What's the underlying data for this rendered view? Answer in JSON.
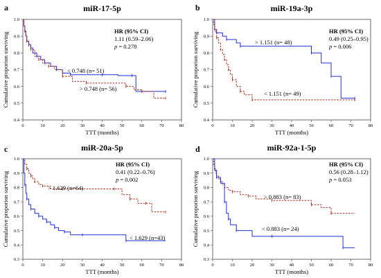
{
  "chart_data": [
    {
      "type": "line",
      "panel_letter": "a",
      "title": "miR-17-5p",
      "xlabel": "TTT (months)",
      "ylabel": "Cumulative proporion surviving",
      "xlim": [
        0,
        80
      ],
      "ylim": [
        0.4,
        1.0
      ],
      "xticks": [
        0,
        10,
        20,
        30,
        40,
        50,
        60,
        70,
        80
      ],
      "yticks": [
        0.4,
        0.5,
        0.6,
        0.7,
        0.8,
        0.9,
        1.0
      ],
      "annotation": {
        "hr_label": "HR (95% CI)",
        "hr_value": "1.11 (0.59–2.06)",
        "p_label": "p",
        "p_value": "= 0.278"
      },
      "series": [
        {
          "name": "< 0.748 (n= 51)",
          "color": "#1f2fd8",
          "dash": "solid",
          "x": [
            0,
            0.5,
            1,
            1.5,
            2,
            3,
            4,
            5,
            7,
            9,
            11,
            14,
            17,
            20,
            24,
            30,
            40,
            48,
            55,
            57,
            72
          ],
          "y": [
            1.0,
            0.96,
            0.93,
            0.9,
            0.87,
            0.85,
            0.83,
            0.8,
            0.78,
            0.76,
            0.74,
            0.72,
            0.7,
            0.68,
            0.67,
            0.67,
            0.67,
            0.665,
            0.665,
            0.57,
            0.57
          ]
        },
        {
          "name": "> 0.748 (n= 56)",
          "color": "#a52a1a",
          "dash": "dashed",
          "x": [
            0,
            0.5,
            1,
            1.5,
            2,
            3,
            4,
            6,
            8,
            10,
            13,
            16,
            20,
            25,
            32,
            45,
            52,
            56,
            60,
            66,
            72
          ],
          "y": [
            1.0,
            0.96,
            0.93,
            0.9,
            0.87,
            0.84,
            0.82,
            0.78,
            0.76,
            0.74,
            0.72,
            0.7,
            0.66,
            0.63,
            0.62,
            0.62,
            0.6,
            0.58,
            0.57,
            0.53,
            0.53
          ]
        }
      ]
    },
    {
      "type": "line",
      "panel_letter": "b",
      "title": "miR-19a-3p",
      "xlabel": "TTT (months)",
      "ylabel": "Cumulative proporion surviving",
      "xlim": [
        0,
        80
      ],
      "ylim": [
        0.4,
        1.0
      ],
      "xticks": [
        0,
        10,
        20,
        30,
        40,
        50,
        60,
        70,
        80
      ],
      "yticks": [
        0.4,
        0.5,
        0.6,
        0.7,
        0.8,
        0.9,
        1.0
      ],
      "annotation": {
        "hr_label": "HR (95% CI)",
        "hr_value": "0.49 (0.25–0.95)",
        "p_label": "p",
        "p_value": "= 0.006"
      },
      "series": [
        {
          "name": "> 1.151 (n= 48)",
          "color": "#1f2fd8",
          "dash": "solid",
          "x": [
            0,
            1,
            2,
            5,
            7,
            12,
            14,
            47,
            50,
            55,
            60,
            65,
            72
          ],
          "y": [
            1.0,
            0.94,
            0.92,
            0.9,
            0.88,
            0.86,
            0.84,
            0.84,
            0.8,
            0.74,
            0.66,
            0.53,
            0.53
          ]
        },
        {
          "name": "< 1.151 (n= 49)",
          "color": "#a52a1a",
          "dash": "dashed",
          "x": [
            0,
            0.5,
            1,
            1.5,
            2,
            3,
            4,
            5,
            6,
            7,
            8,
            9,
            10,
            12,
            14,
            16,
            20,
            30,
            72
          ],
          "y": [
            1.0,
            0.97,
            0.94,
            0.92,
            0.89,
            0.86,
            0.82,
            0.79,
            0.76,
            0.73,
            0.7,
            0.67,
            0.64,
            0.6,
            0.57,
            0.55,
            0.52,
            0.52,
            0.52
          ]
        }
      ]
    },
    {
      "type": "line",
      "panel_letter": "c",
      "title": "miR-20a-5p",
      "xlabel": "TTT (months)",
      "ylabel": "Cumulative proporion surviving",
      "xlim": [
        0,
        80
      ],
      "ylim": [
        0.3,
        1.0
      ],
      "xticks": [
        0,
        10,
        20,
        30,
        40,
        50,
        60,
        70,
        80
      ],
      "yticks": [
        0.3,
        0.4,
        0.5,
        0.6,
        0.7,
        0.8,
        0.9,
        1.0
      ],
      "annotation": {
        "hr_label": "HR (95% CI)",
        "hr_value": "0.41 (0.22–0.76)",
        "p_label": "p",
        "p_value": "= 0.002"
      },
      "series": [
        {
          "name": "> 1.629 (n=64)",
          "color": "#a52a1a",
          "dash": "dashed",
          "x": [
            0,
            1,
            2,
            3,
            4,
            5,
            6,
            8,
            10,
            14,
            20,
            30,
            46,
            50,
            54,
            58,
            62,
            65,
            72
          ],
          "y": [
            1.0,
            0.96,
            0.93,
            0.9,
            0.88,
            0.86,
            0.84,
            0.82,
            0.81,
            0.79,
            0.79,
            0.79,
            0.79,
            0.75,
            0.72,
            0.69,
            0.69,
            0.63,
            0.63
          ]
        },
        {
          "name": "< 1.629 (n=43)",
          "color": "#1f2fd8",
          "dash": "solid",
          "x": [
            0,
            0.5,
            1,
            1.5,
            2,
            3,
            4,
            6,
            8,
            10,
            12,
            14,
            16,
            18,
            21,
            24,
            30,
            48,
            52,
            72
          ],
          "y": [
            1.0,
            0.9,
            0.82,
            0.76,
            0.72,
            0.68,
            0.65,
            0.62,
            0.6,
            0.58,
            0.56,
            0.54,
            0.52,
            0.5,
            0.49,
            0.47,
            0.47,
            0.47,
            0.43,
            0.43
          ]
        }
      ]
    },
    {
      "type": "line",
      "panel_letter": "d",
      "title": "miR-92a-1-5p",
      "xlabel": "TTT (months)",
      "ylabel": "Cumulative proporion surviving",
      "xlim": [
        0,
        80
      ],
      "ylim": [
        0.3,
        1.0
      ],
      "xticks": [
        0,
        10,
        20,
        30,
        40,
        50,
        60,
        70,
        80
      ],
      "yticks": [
        0.3,
        0.4,
        0.5,
        0.6,
        0.7,
        0.8,
        0.9,
        1.0
      ],
      "annotation": {
        "hr_label": "HR (95% CI)",
        "hr_value": "0.56 (0.28–1.12)",
        "p_label": "p",
        "p_value": "= 0.053"
      },
      "series": [
        {
          "name": "> 0.883 (n= 83)",
          "color": "#a52a1a",
          "dash": "dashed",
          "x": [
            0,
            0.5,
            1,
            1.5,
            2,
            3,
            4,
            5,
            6,
            8,
            10,
            14,
            18,
            22,
            30,
            45,
            50,
            55,
            60,
            72
          ],
          "y": [
            1.0,
            0.96,
            0.93,
            0.9,
            0.88,
            0.86,
            0.84,
            0.82,
            0.8,
            0.78,
            0.77,
            0.75,
            0.74,
            0.72,
            0.71,
            0.71,
            0.68,
            0.66,
            0.62,
            0.62
          ]
        },
        {
          "name": "< 0.883 (n= 24)",
          "color": "#1f2fd8",
          "dash": "solid",
          "x": [
            0,
            1,
            2,
            4,
            6,
            7,
            8,
            9,
            12,
            20,
            30,
            64,
            66,
            72
          ],
          "y": [
            1.0,
            0.92,
            0.87,
            0.83,
            0.7,
            0.62,
            0.58,
            0.54,
            0.5,
            0.46,
            0.46,
            0.46,
            0.38,
            0.38
          ]
        }
      ]
    }
  ]
}
